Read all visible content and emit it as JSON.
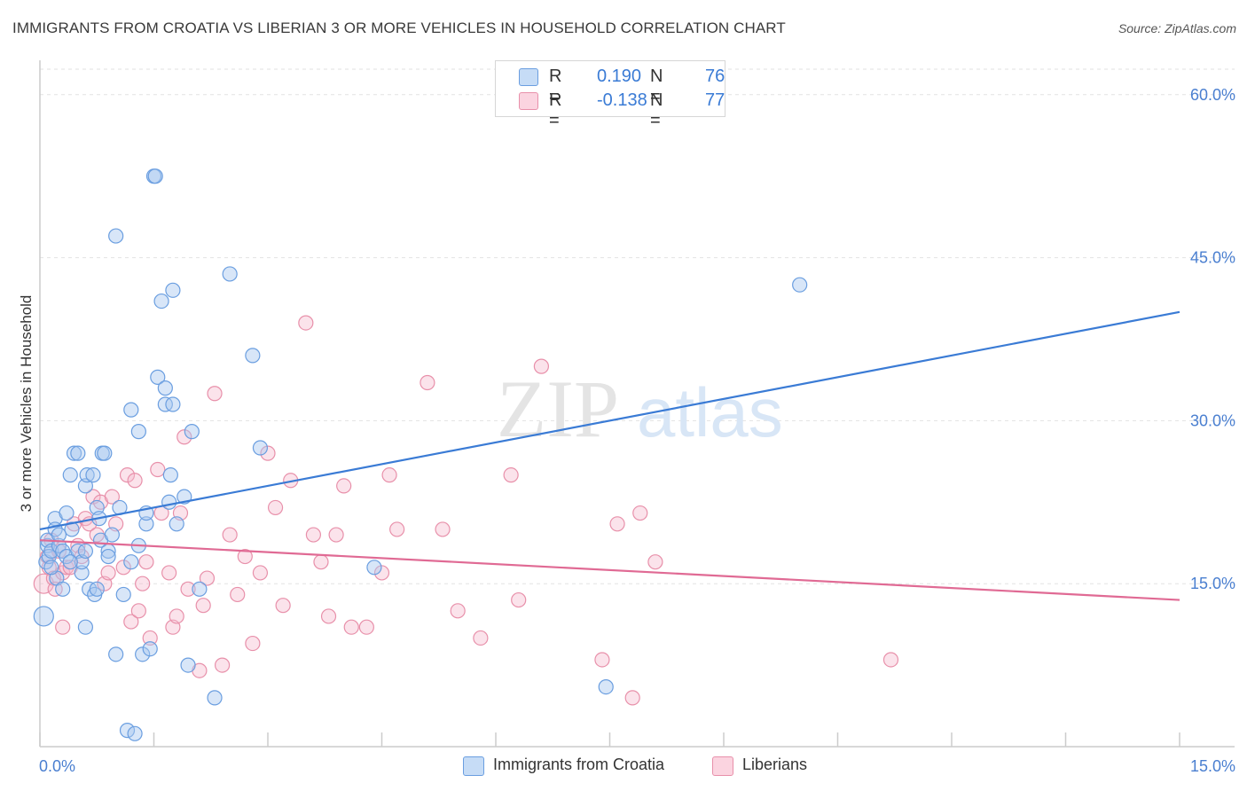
{
  "title": "IMMIGRANTS FROM CROATIA VS LIBERIAN 3 OR MORE VEHICLES IN HOUSEHOLD CORRELATION CHART",
  "source": "Source: ZipAtlas.com",
  "watermark": {
    "zip": "ZIP",
    "atlas": "atlas"
  },
  "legend": {
    "rows": [
      {
        "r_label": "R =",
        "r_value": "0.190",
        "n_label": "N =",
        "n_value": "76",
        "color": "#a8c8f0",
        "stroke": "#6a9ee0"
      },
      {
        "r_label": "R =",
        "r_value": "-0.138",
        "n_label": "N =",
        "n_value": "77",
        "color": "#f6b8cc",
        "stroke": "#e890aa"
      }
    ]
  },
  "bottom_legend": [
    {
      "label": "Immigrants from Croatia",
      "color": "#c6dcf6",
      "stroke": "#6a9ee0"
    },
    {
      "label": "Liberians",
      "color": "#fbd4e0",
      "stroke": "#e890aa"
    }
  ],
  "colors": {
    "blue_line": "#3a7bd5",
    "pink_line": "#e06a94",
    "tick_text": "#4a7fd0",
    "grid": "#e2e2e2",
    "axis": "#cccccc"
  },
  "chart_data": {
    "type": "scatter",
    "title": "IMMIGRANTS FROM CROATIA VS LIBERIAN 3 OR MORE VEHICLES IN HOUSEHOLD CORRELATION CHART",
    "xlabel": "",
    "ylabel": "3 or more Vehicles in Household",
    "xlim": [
      0,
      15
    ],
    "ylim": [
      0,
      63
    ],
    "x_tick_labels": [
      "0.0%",
      "15.0%"
    ],
    "y_ticks": [
      15,
      30,
      45,
      60
    ],
    "y_tick_labels": [
      "15.0%",
      "30.0%",
      "45.0%",
      "60.0%"
    ],
    "series": [
      {
        "name": "Immigrants from Croatia",
        "R": 0.19,
        "N": 76,
        "trend": {
          "x": [
            0,
            15
          ],
          "y": [
            20.0,
            40.0
          ]
        },
        "points": [
          [
            0.05,
            12.0
          ],
          [
            0.08,
            17.0
          ],
          [
            0.1,
            18.5
          ],
          [
            0.1,
            19.0
          ],
          [
            0.12,
            17.5
          ],
          [
            0.15,
            18.0
          ],
          [
            0.2,
            21.0
          ],
          [
            0.2,
            20.0
          ],
          [
            0.22,
            15.5
          ],
          [
            0.25,
            18.5
          ],
          [
            0.3,
            14.5
          ],
          [
            0.3,
            18.0
          ],
          [
            0.35,
            17.5
          ],
          [
            0.35,
            21.5
          ],
          [
            0.4,
            25.0
          ],
          [
            0.42,
            20.0
          ],
          [
            0.45,
            27.0
          ],
          [
            0.5,
            27.0
          ],
          [
            0.5,
            18.0
          ],
          [
            0.55,
            16.0
          ],
          [
            0.55,
            17.0
          ],
          [
            0.6,
            11.0
          ],
          [
            0.6,
            24.0
          ],
          [
            0.62,
            25.0
          ],
          [
            0.65,
            14.5
          ],
          [
            0.7,
            25.0
          ],
          [
            0.72,
            14.0
          ],
          [
            0.75,
            14.5
          ],
          [
            0.75,
            22.0
          ],
          [
            0.78,
            21.0
          ],
          [
            0.8,
            19.0
          ],
          [
            0.82,
            27.0
          ],
          [
            0.85,
            27.0
          ],
          [
            0.9,
            18.0
          ],
          [
            0.95,
            19.5
          ],
          [
            1.0,
            47.0
          ],
          [
            1.0,
            8.5
          ],
          [
            1.05,
            22.0
          ],
          [
            1.1,
            14.0
          ],
          [
            1.15,
            1.5
          ],
          [
            1.2,
            17.0
          ],
          [
            1.2,
            31.0
          ],
          [
            1.25,
            1.2
          ],
          [
            1.3,
            29.0
          ],
          [
            1.35,
            8.5
          ],
          [
            1.4,
            20.5
          ],
          [
            1.4,
            21.5
          ],
          [
            1.45,
            9.0
          ],
          [
            1.5,
            52.5
          ],
          [
            1.52,
            52.5
          ],
          [
            1.55,
            34.0
          ],
          [
            1.6,
            41.0
          ],
          [
            1.65,
            31.5
          ],
          [
            1.65,
            33.0
          ],
          [
            1.7,
            22.5
          ],
          [
            1.72,
            25.0
          ],
          [
            1.75,
            31.5
          ],
          [
            1.75,
            42.0
          ],
          [
            1.8,
            20.5
          ],
          [
            1.9,
            23.0
          ],
          [
            1.95,
            7.5
          ],
          [
            2.0,
            29.0
          ],
          [
            2.1,
            14.5
          ],
          [
            2.3,
            4.5
          ],
          [
            2.5,
            43.5
          ],
          [
            2.8,
            36.0
          ],
          [
            2.9,
            27.5
          ],
          [
            4.4,
            16.5
          ],
          [
            7.45,
            5.5
          ],
          [
            10.0,
            42.5
          ],
          [
            0.15,
            16.5
          ],
          [
            0.25,
            19.5
          ],
          [
            0.4,
            17.0
          ],
          [
            0.6,
            18.0
          ],
          [
            0.9,
            17.5
          ],
          [
            1.3,
            18.5
          ]
        ]
      },
      {
        "name": "Liberians",
        "R": -0.138,
        "N": 77,
        "trend": {
          "x": [
            0,
            15
          ],
          "y": [
            19.0,
            13.5
          ]
        },
        "points": [
          [
            0.05,
            15.0
          ],
          [
            0.1,
            17.5
          ],
          [
            0.12,
            16.5
          ],
          [
            0.15,
            19.0
          ],
          [
            0.18,
            15.5
          ],
          [
            0.2,
            14.5
          ],
          [
            0.25,
            18.0
          ],
          [
            0.3,
            16.0
          ],
          [
            0.3,
            11.0
          ],
          [
            0.35,
            16.5
          ],
          [
            0.4,
            16.5
          ],
          [
            0.45,
            20.5
          ],
          [
            0.5,
            18.5
          ],
          [
            0.55,
            17.5
          ],
          [
            0.6,
            21.0
          ],
          [
            0.65,
            20.5
          ],
          [
            0.7,
            23.0
          ],
          [
            0.75,
            19.5
          ],
          [
            0.8,
            22.5
          ],
          [
            0.85,
            15.0
          ],
          [
            0.9,
            16.0
          ],
          [
            0.95,
            23.0
          ],
          [
            1.0,
            20.5
          ],
          [
            1.1,
            16.5
          ],
          [
            1.15,
            25.0
          ],
          [
            1.2,
            11.5
          ],
          [
            1.25,
            24.5
          ],
          [
            1.3,
            12.5
          ],
          [
            1.35,
            15.0
          ],
          [
            1.4,
            17.0
          ],
          [
            1.45,
            10.0
          ],
          [
            1.55,
            25.5
          ],
          [
            1.6,
            21.5
          ],
          [
            1.7,
            16.0
          ],
          [
            1.75,
            11.0
          ],
          [
            1.8,
            12.0
          ],
          [
            1.85,
            21.5
          ],
          [
            1.9,
            28.5
          ],
          [
            1.95,
            14.5
          ],
          [
            2.1,
            7.0
          ],
          [
            2.15,
            13.0
          ],
          [
            2.2,
            15.5
          ],
          [
            2.3,
            32.5
          ],
          [
            2.4,
            7.5
          ],
          [
            2.5,
            19.5
          ],
          [
            2.6,
            14.0
          ],
          [
            2.7,
            17.5
          ],
          [
            2.8,
            9.5
          ],
          [
            2.9,
            16.0
          ],
          [
            3.0,
            27.0
          ],
          [
            3.1,
            22.0
          ],
          [
            3.2,
            13.0
          ],
          [
            3.3,
            24.5
          ],
          [
            3.5,
            39.0
          ],
          [
            3.6,
            19.5
          ],
          [
            3.7,
            17.0
          ],
          [
            3.8,
            12.0
          ],
          [
            3.9,
            19.5
          ],
          [
            4.0,
            24.0
          ],
          [
            4.1,
            11.0
          ],
          [
            4.3,
            11.0
          ],
          [
            4.5,
            16.0
          ],
          [
            4.6,
            25.0
          ],
          [
            4.7,
            20.0
          ],
          [
            5.1,
            33.5
          ],
          [
            5.3,
            20.0
          ],
          [
            5.5,
            12.5
          ],
          [
            5.8,
            10.0
          ],
          [
            6.2,
            25.0
          ],
          [
            6.3,
            13.5
          ],
          [
            6.6,
            35.0
          ],
          [
            7.4,
            8.0
          ],
          [
            7.6,
            20.5
          ],
          [
            7.8,
            4.5
          ],
          [
            7.9,
            21.5
          ],
          [
            8.1,
            17.0
          ],
          [
            11.2,
            8.0
          ]
        ]
      }
    ]
  }
}
